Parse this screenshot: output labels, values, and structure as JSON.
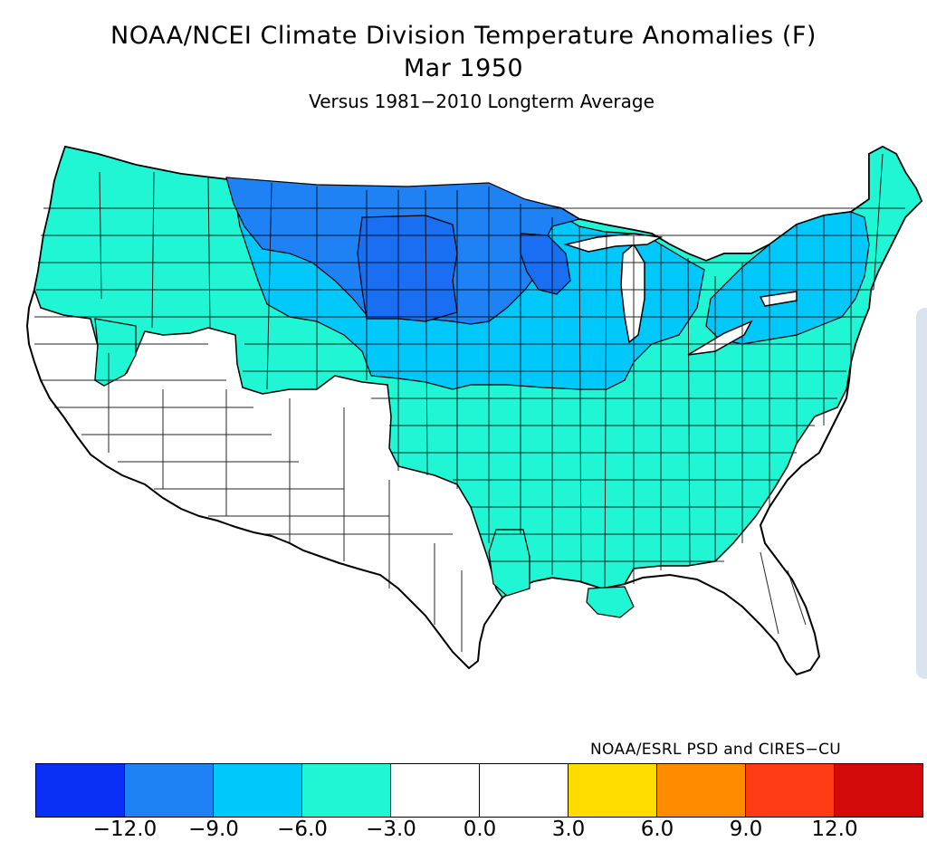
{
  "header": {
    "title": "NOAA/NCEI Climate Division Temperature Anomalies (F)",
    "period": "Mar 1950",
    "baseline": "Versus 1981−2010 Longterm Average"
  },
  "credit": "NOAA/ESRL PSD and CIRES−CU",
  "legend": {
    "units": "F",
    "colors": [
      "#0a2ff5",
      "#1e82f5",
      "#00c8fa",
      "#20f5d4",
      "#ffffff",
      "#ffffff",
      "#ffdc00",
      "#ff8c00",
      "#ff3c14",
      "#d20a0a"
    ],
    "ticks": [
      "−12.0",
      "−9.0",
      "−6.0",
      "−3.0",
      "0.0",
      "3.0",
      "6.0",
      "9.0",
      "12.0"
    ]
  },
  "regions": [
    {
      "id": "northern-plains-core",
      "class": "-12 to -9",
      "color": "#1a6ef2"
    },
    {
      "id": "northern-rockies-plains",
      "class": "-9 to -6",
      "color": "#1e82f5"
    },
    {
      "id": "upper-midwest-great-lakes",
      "class": "-6 to -3",
      "color": "#00c8fa"
    },
    {
      "id": "northeast",
      "class": "-6 to -3",
      "color": "#00c8fa"
    },
    {
      "id": "pacific-northwest",
      "class": "-3 to 0",
      "color": "#20f5d4"
    },
    {
      "id": "central-east",
      "class": "-3 to 0",
      "color": "#20f5d4"
    },
    {
      "id": "southwest-texas",
      "class": "0 to 3",
      "color": "#ffffff"
    },
    {
      "id": "florida-carolinas-coast",
      "class": "0 to 3",
      "color": "#ffffff"
    }
  ]
}
